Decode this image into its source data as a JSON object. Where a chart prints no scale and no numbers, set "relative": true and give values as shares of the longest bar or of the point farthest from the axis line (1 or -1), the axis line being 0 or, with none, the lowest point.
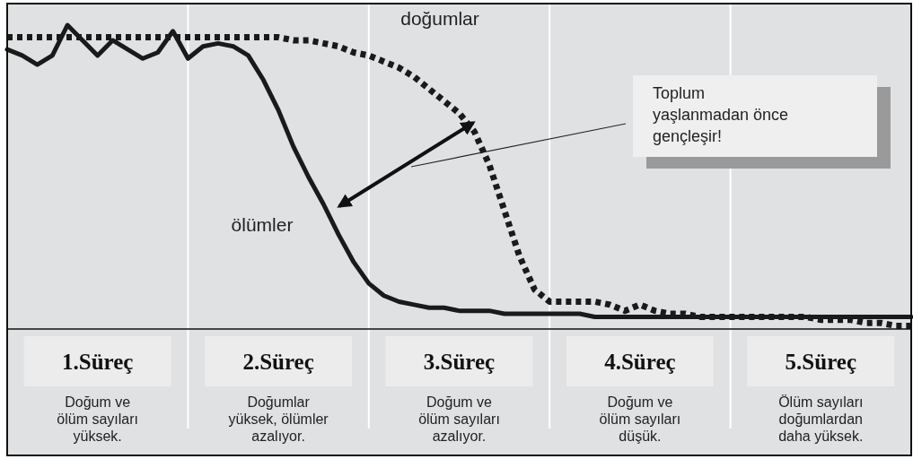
{
  "chart_data": {
    "type": "line",
    "relative": true,
    "legend": false,
    "grid": "x",
    "categories": [
      null,
      null,
      null,
      null,
      null,
      null,
      null,
      null,
      null,
      null,
      null,
      null,
      null,
      null,
      null,
      null,
      null,
      null,
      null,
      null,
      null,
      null,
      null,
      null,
      null,
      null,
      null,
      null,
      null,
      null,
      null,
      null,
      null,
      null,
      null,
      null,
      null,
      null,
      null,
      null,
      null,
      null,
      null,
      null,
      null,
      null,
      null,
      null,
      null,
      null,
      null,
      null,
      null,
      null,
      null,
      null,
      null,
      null,
      null,
      null,
      null
    ],
    "series": [
      {
        "name": "doğumlar",
        "color": "#1a1a1a",
        "line_style": "dotted",
        "values": [
          0.96,
          0.96,
          0.96,
          0.96,
          0.96,
          0.96,
          0.96,
          0.96,
          0.96,
          0.96,
          0.96,
          0.96,
          0.96,
          0.96,
          0.96,
          0.96,
          0.96,
          0.96,
          0.96,
          0.95,
          0.95,
          0.94,
          0.93,
          0.91,
          0.9,
          0.88,
          0.86,
          0.83,
          0.79,
          0.75,
          0.71,
          0.65,
          0.54,
          0.39,
          0.24,
          0.13,
          0.09,
          0.09,
          0.09,
          0.09,
          0.08,
          0.06,
          0.08,
          0.06,
          0.05,
          0.05,
          0.04,
          0.04,
          0.04,
          0.04,
          0.04,
          0.04,
          0.04,
          0.04,
          0.03,
          0.03,
          0.03,
          0.02,
          0.02,
          0.01,
          0.01
        ]
      },
      {
        "name": "ölümler",
        "color": "#1a1a1a",
        "line_style": "solid",
        "values": [
          0.92,
          0.9,
          0.87,
          0.9,
          1.0,
          0.95,
          0.9,
          0.95,
          0.92,
          0.89,
          0.91,
          0.98,
          0.89,
          0.93,
          0.94,
          0.93,
          0.9,
          0.82,
          0.72,
          0.6,
          0.5,
          0.41,
          0.31,
          0.22,
          0.15,
          0.11,
          0.09,
          0.08,
          0.07,
          0.07,
          0.06,
          0.06,
          0.06,
          0.05,
          0.05,
          0.05,
          0.05,
          0.05,
          0.05,
          0.04,
          0.04,
          0.04,
          0.04,
          0.04,
          0.04,
          0.04,
          0.04,
          0.04,
          0.04,
          0.04,
          0.04,
          0.04,
          0.04,
          0.04,
          0.04,
          0.04,
          0.04,
          0.04,
          0.04,
          0.04,
          0.04
        ]
      }
    ],
    "annotations": [
      "1.Süreç",
      "2.Süreç",
      "3.Süreç",
      "4.Süreç",
      "5.Süreç",
      "Doğum ve\nölüm sayıları\nyüksek.",
      "Doğumlar\nyüksek, ölümler\nazalıyor.",
      "Doğum ve\nölüm sayıları\nazalıyor.",
      "Doğum ve\nölüm sayıları\ndüşük.",
      "Ölüm sayıları\ndoğumlardan\ndaha yüksek.",
      "Toplum\nyaşlanmadan önce\ngençleşir!"
    ]
  }
}
